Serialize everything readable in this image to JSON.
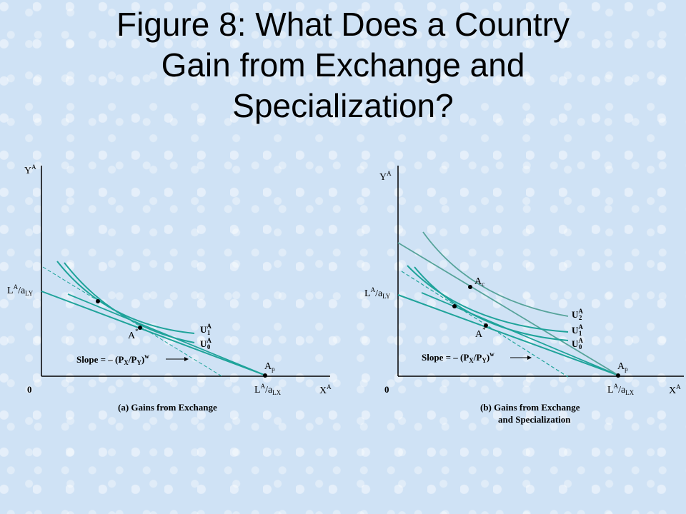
{
  "title": {
    "line1": "Figure 8: What Does a Country",
    "line2": "Gain from Exchange and",
    "line3": "Specialization?"
  },
  "colors": {
    "curve": "#1fa39a",
    "curve_light": "#56a39a",
    "axis": "#000000",
    "background": "#cfe2f5"
  },
  "panel_a": {
    "y_axis": "Y",
    "y_axis_sup": "A",
    "x_axis": "X",
    "x_axis_sup": "A",
    "origin": "0",
    "y_intercept": "L",
    "y_intercept_sup": "A",
    "y_intercept_den": "/a",
    "y_intercept_sub": "LY",
    "x_intercept": "L",
    "x_intercept_sup": "A",
    "x_intercept_den": "/a",
    "x_intercept_sub": "LX",
    "point_autarky": "A",
    "point_autarky_sup": "*",
    "point_production": "A",
    "point_production_sub": "p",
    "u1": "U",
    "u1_sup": "A",
    "u1_sub": "1",
    "u0": "U",
    "u0_sup": "A",
    "u0_sub": "0",
    "slope_label": "Slope = – (P",
    "slope_x": "X",
    "slope_mid": "/P",
    "slope_y": "Y",
    "slope_end": ")",
    "slope_sup": "w",
    "caption": "(a) Gains from Exchange"
  },
  "panel_b": {
    "y_axis": "Y",
    "y_axis_sup": "A",
    "x_axis": "X",
    "x_axis_sup": "A",
    "origin": "0",
    "y_intercept": "L",
    "y_intercept_sup": "A",
    "y_intercept_den": "/a",
    "y_intercept_sub": "LY",
    "x_intercept": "L",
    "x_intercept_sup": "A",
    "x_intercept_den": "/a",
    "x_intercept_sub": "LX",
    "point_autarky": "A",
    "point_autarky_sup": "*",
    "point_production": "A",
    "point_production_sub": "p",
    "point_consumption": "A",
    "point_consumption_sub": "c",
    "u2": "U",
    "u2_sup": "A",
    "u2_sub": "2",
    "u1": "U",
    "u1_sup": "A",
    "u1_sub": "1",
    "u0": "U",
    "u0_sup": "A",
    "u0_sub": "0",
    "slope_label": "Slope = – (P",
    "slope_x": "X",
    "slope_mid": "/P",
    "slope_y": "Y",
    "slope_end": ")",
    "slope_sup": "w",
    "caption_line1": "(b) Gains from Exchange",
    "caption_line2": "and Specialization"
  }
}
